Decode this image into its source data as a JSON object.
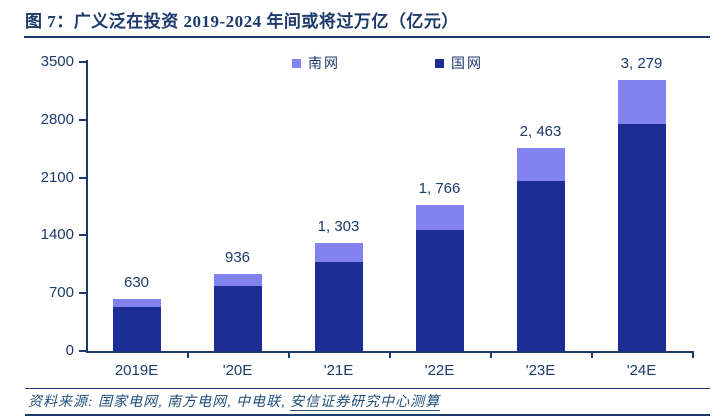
{
  "header": {
    "title": "图 7：广义泛在投资 2019-2024 年间或将过万亿（亿元）"
  },
  "footer": {
    "source_prefix": "资料来源: 国家电网, 南方电网, 中电联, ",
    "source_underlined": "安信证券研究中心测算"
  },
  "colors": {
    "text_navy": "#1c3a6b",
    "axis": "#1c3a6b",
    "guowang_bar": "#1c2d96",
    "nanwang_bar": "#8283ee",
    "footer_text": "#1f4e79"
  },
  "chart_data": {
    "type": "bar",
    "stacked": true,
    "title": "广义泛在投资 2019-2024 年间或将过万亿（亿元）",
    "xlabel": "",
    "ylabel": "",
    "categories": [
      "2019E",
      "'20E",
      "'21E",
      "'22E",
      "'23E",
      "'24E"
    ],
    "series": [
      {
        "name": "国网",
        "color": "#1c2d96",
        "values": [
          530,
          786,
          1083,
          1466,
          2063,
          2746
        ]
      },
      {
        "name": "南网",
        "color": "#8283ee",
        "values": [
          100,
          150,
          220,
          300,
          400,
          533
        ]
      }
    ],
    "totals": [
      630,
      936,
      1303,
      1766,
      2463,
      3279
    ],
    "total_labels": [
      "630",
      "936",
      "1, 303",
      "1, 766",
      "2, 463",
      "3, 279"
    ],
    "legend": [
      {
        "label": "南网",
        "color": "#8283ee"
      },
      {
        "label": "国网",
        "color": "#1c2d96"
      }
    ],
    "legend_position": "top-center",
    "yticks": [
      0,
      700,
      1400,
      2100,
      2800,
      3500
    ],
    "ylim": [
      0,
      3500
    ],
    "grid": false
  }
}
